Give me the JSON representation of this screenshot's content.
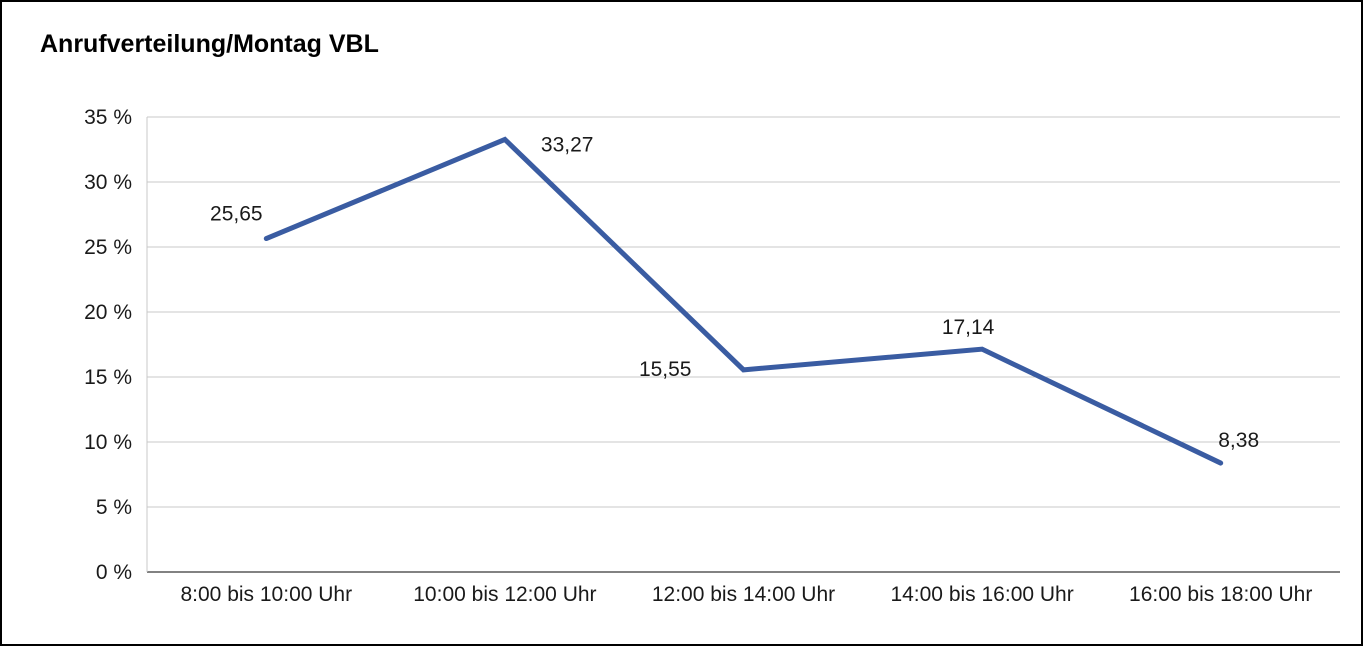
{
  "title": "Anrufverteilung/Montag VBL",
  "colors": {
    "line": "#3a5ca2",
    "grid": "#c9c9c9",
    "axis": "#595959",
    "text": "#1a1a1a",
    "background": "#ffffff",
    "border": "#000000"
  },
  "chart_data": {
    "type": "line",
    "title": "Anrufverteilung/Montag VBL",
    "categories": [
      "8:00 bis 10:00 Uhr",
      "10:00 bis 12:00 Uhr",
      "12:00 bis 14:00 Uhr",
      "14:00 bis 16:00 Uhr",
      "16:00 bis 18:00 Uhr"
    ],
    "values": [
      25.65,
      33.27,
      15.55,
      17.14,
      8.38
    ],
    "value_labels": [
      "25,65",
      "33,27",
      "15,55",
      "17,14",
      "8,38"
    ],
    "xlabel": "",
    "ylabel": "",
    "ylim": [
      0,
      35
    ],
    "ytick_step": 5,
    "ytick_labels": [
      "0 %",
      "5 %",
      "10 %",
      "15 %",
      "20 %",
      "25 %",
      "30 %",
      "35 %"
    ],
    "grid": true,
    "legend": "none",
    "series_color": "#3a5ca2"
  }
}
